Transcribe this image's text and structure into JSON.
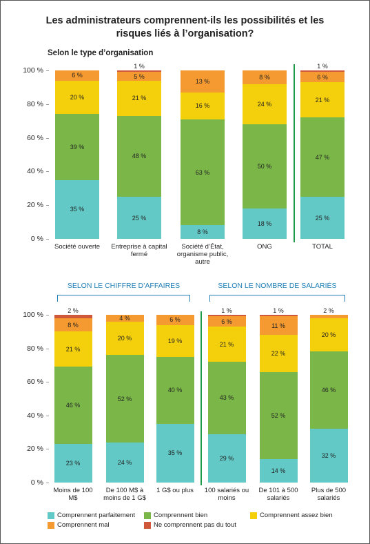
{
  "chart_data": [
    {
      "type": "stacked_bar",
      "title": "Les administrateurs comprennent-ils les possibilités et les risques liés à l’organisation?",
      "subtitle": "Selon le type d’organisation",
      "categories": [
        "Société ouverte",
        "Entreprise à capital fermé",
        "Société d’État, organisme public, autre",
        "ONG",
        "TOTAL"
      ],
      "ylim": [
        0,
        100
      ],
      "yticks": [
        {
          "value": 0,
          "label": "0 %"
        },
        {
          "value": 20,
          "label": "20 %"
        },
        {
          "value": 40,
          "label": "40 %"
        },
        {
          "value": 60,
          "label": "60 %"
        },
        {
          "value": 80,
          "label": "80 %"
        },
        {
          "value": 100,
          "label": "100 %"
        }
      ],
      "series": [
        {
          "name": "Comprennent parfaitement",
          "color": "#62c9c6",
          "values": [
            35,
            25,
            8,
            18,
            25
          ],
          "value_labels": [
            "35 %",
            "25 %",
            "8 %",
            "18 %",
            "25 %"
          ]
        },
        {
          "name": "Comprennent bien",
          "color": "#7ab648",
          "values": [
            39,
            48,
            63,
            50,
            47
          ],
          "value_labels": [
            "39 %",
            "48 %",
            "63 %",
            "50 %",
            "47 %"
          ]
        },
        {
          "name": "Comprennent assez bien",
          "color": "#f4cf0b",
          "values": [
            20,
            21,
            16,
            24,
            21
          ],
          "value_labels": [
            "20 %",
            "21 %",
            "16 %",
            "24 %",
            "21 %"
          ]
        },
        {
          "name": "Comprennent mal",
          "color": "#f59a30",
          "values": [
            6,
            5,
            13,
            8,
            6
          ],
          "value_labels": [
            "6 %",
            "5 %",
            "13 %",
            "8 %",
            "6 %"
          ]
        },
        {
          "name": "Ne comprennent pas du tout",
          "color": "#d0583a",
          "values": [
            null,
            1,
            null,
            null,
            1
          ],
          "value_labels": [
            null,
            "1 %",
            null,
            null,
            "1 %"
          ]
        }
      ]
    },
    {
      "type": "stacked_bar",
      "group_labels": [
        "SELON LE CHIFFRE D’AFFAIRES",
        "SELON LE NOMBRE DE SALARIÉS"
      ],
      "categories": [
        "Moins de 100 M$",
        "De 100 M$ à moins de 1 G$",
        "1 G$ ou plus",
        "100 salariés ou moins",
        "De 101 à 500 salariés",
        "Plus de 500 salariés"
      ],
      "ylim": [
        0,
        100
      ],
      "yticks": [
        {
          "value": 0,
          "label": "0 %"
        },
        {
          "value": 20,
          "label": "20 %"
        },
        {
          "value": 40,
          "label": "40 %"
        },
        {
          "value": 60,
          "label": "60 %"
        },
        {
          "value": 80,
          "label": "80 %"
        },
        {
          "value": 100,
          "label": "100 %"
        }
      ],
      "series": [
        {
          "color": "#62c9c6",
          "values": [
            23,
            24,
            35,
            29,
            14,
            32
          ],
          "value_labels": [
            "23 %",
            "24 %",
            "35 %",
            "29 %",
            "14 %",
            "32 %"
          ]
        },
        {
          "color": "#7ab648",
          "values": [
            46,
            52,
            40,
            43,
            52,
            46
          ],
          "value_labels": [
            "46 %",
            "52 %",
            "40 %",
            "43 %",
            "52 %",
            "46 %"
          ]
        },
        {
          "color": "#f4cf0b",
          "values": [
            21,
            20,
            19,
            21,
            22,
            20
          ],
          "value_labels": [
            "21 %",
            "20 %",
            "19 %",
            "21 %",
            "22 %",
            "20 %"
          ]
        },
        {
          "color": "#f59a30",
          "values": [
            8,
            4,
            6,
            6,
            11,
            2
          ],
          "value_labels": [
            "8 %",
            "4 %",
            "6 %",
            "6 %",
            "11 %",
            "2 %"
          ]
        },
        {
          "color": "#d0583a",
          "values": [
            2,
            null,
            null,
            1,
            1,
            null
          ],
          "value_labels": [
            "2 %",
            null,
            null,
            "1 %",
            "1 %",
            null
          ]
        }
      ]
    }
  ]
}
